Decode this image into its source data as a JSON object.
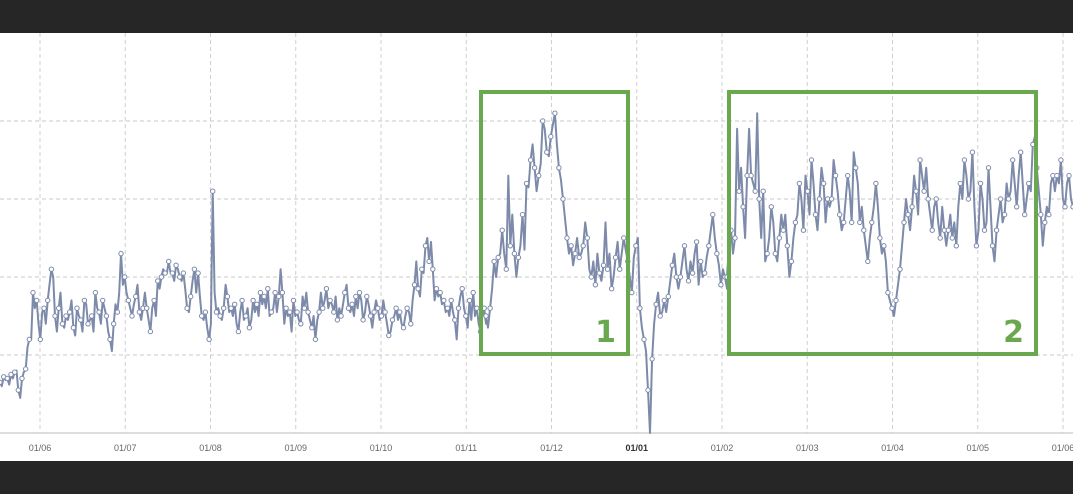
{
  "chart_data": {
    "type": "line",
    "title": "",
    "xlabel": "",
    "ylabel": "",
    "x_tick_labels": [
      "01/06",
      "01/07",
      "01/08",
      "01/09",
      "01/10",
      "01/11",
      "01/12",
      "01/01",
      "01/02",
      "01/03",
      "01/04",
      "01/05",
      "01/06"
    ],
    "bold_tick_index": 7,
    "ylim": [
      0,
      5
    ],
    "y_gridlines": [
      1,
      2,
      3,
      4
    ],
    "grid": true,
    "legend": "none",
    "line_color": "#7d8aaa",
    "marker": "hollow-circle",
    "series": [
      {
        "values": [
          0.65,
          0.6,
          0.72,
          0.68,
          0.7,
          0.62,
          0.75,
          0.7,
          0.78,
          0.8,
          0.55,
          0.45,
          0.7,
          0.78,
          0.82,
          1.1,
          1.2,
          1.2,
          1.8,
          1.6,
          1.7,
          1.4,
          1.2,
          1.55,
          1.6,
          1.4,
          1.7,
          1.9,
          2.1,
          2.0,
          1.5,
          1.3,
          1.6,
          1.8,
          1.4,
          1.35,
          1.5,
          1.45,
          1.55,
          1.7,
          1.35,
          1.25,
          1.6,
          1.5,
          1.45,
          1.3,
          1.7,
          1.65,
          1.4,
          1.45,
          1.5,
          1.3,
          1.8,
          1.6,
          1.55,
          1.4,
          1.7,
          1.6,
          1.5,
          1.3,
          1.2,
          1.05,
          1.4,
          1.65,
          1.55,
          1.8,
          2.3,
          1.9,
          2.0,
          1.8,
          1.7,
          1.6,
          1.5,
          1.65,
          1.75,
          1.9,
          1.55,
          1.45,
          1.6,
          1.8,
          1.6,
          1.45,
          1.3,
          1.6,
          1.7,
          1.5,
          1.95,
          1.85,
          2.0,
          2.1,
          2.05,
          2.05,
          2.2,
          2.05,
          2.05,
          1.95,
          2.15,
          2.1,
          2.0,
          1.95,
          2.05,
          1.85,
          1.6,
          1.55,
          1.75,
          1.95,
          2.1,
          1.8,
          2.05,
          1.75,
          1.5,
          1.45,
          1.55,
          1.35,
          1.2,
          1.4,
          3.1,
          1.8,
          1.55,
          1.6,
          1.5,
          1.45,
          1.6,
          1.9,
          1.75,
          1.55,
          1.6,
          1.5,
          1.65,
          1.4,
          1.3,
          1.55,
          1.7,
          1.45,
          1.5,
          1.6,
          1.35,
          1.45,
          1.7,
          1.55,
          1.65,
          1.5,
          1.8,
          1.65,
          1.75,
          1.6,
          1.85,
          1.5,
          1.55,
          1.6,
          1.8,
          1.55,
          1.75,
          2.1,
          1.8,
          1.4,
          1.6,
          1.5,
          1.55,
          1.3,
          1.7,
          1.5,
          1.55,
          1.45,
          1.4,
          1.75,
          1.6,
          1.8,
          1.55,
          1.45,
          1.35,
          1.5,
          1.2,
          1.45,
          1.55,
          1.8,
          1.6,
          1.7,
          1.85,
          1.6,
          1.7,
          1.65,
          1.55,
          1.75,
          1.45,
          1.6,
          1.5,
          1.65,
          1.8,
          1.9,
          1.6,
          1.55,
          1.65,
          1.5,
          1.75,
          1.6,
          1.8,
          1.7,
          1.45,
          1.55,
          1.75,
          1.65,
          1.5,
          1.35,
          1.55,
          1.7,
          1.6,
          1.45,
          1.5,
          1.7,
          1.55,
          1.4,
          1.25,
          1.3,
          1.45,
          1.5,
          1.6,
          1.45,
          1.55,
          1.4,
          1.35,
          1.5,
          1.6,
          1.55,
          1.4,
          1.7,
          1.9,
          2.2,
          1.85,
          1.75,
          2.1,
          2.05,
          2.4,
          2.5,
          2.2,
          2.45,
          2.1,
          1.7,
          1.85,
          1.75,
          1.8,
          1.65,
          1.7,
          1.55,
          1.6,
          1.5,
          1.7,
          1.55,
          1.45,
          1.2,
          1.6,
          1.75,
          1.85,
          1.6,
          1.5,
          1.35,
          1.7,
          1.45,
          1.8,
          1.5,
          1.6,
          1.4,
          1.3,
          1.5,
          1.6,
          1.4
        ]
      },
      {
        "name": "",
        "values": [
          1.5,
          1.35,
          1.6,
          1.85,
          2.2,
          2.0,
          2.25,
          2.3,
          2.6,
          2.3,
          2.1,
          3.3,
          2.4,
          2.8,
          2.3,
          2.0,
          2.25,
          2.4,
          2.8,
          2.35,
          3.2,
          3.15,
          3.5,
          3.7,
          3.4,
          3.1,
          3.3,
          3.45,
          4.0,
          3.9,
          3.6,
          3.55,
          3.8,
          3.95,
          4.1,
          3.7,
          3.4,
          3.25,
          3.0,
          2.75,
          2.5,
          2.3,
          2.4,
          2.15,
          2.3,
          2.5,
          2.25,
          2.3,
          2.4,
          2.7,
          2.5,
          2.1,
          2.0,
          2.2,
          1.9,
          2.3,
          2.05,
          1.95,
          2.15,
          2.7,
          2.1,
          2.3,
          1.85,
          2.0,
          2.25,
          2.45,
          2.1,
          2.3,
          2.5,
          2.35,
          2.2,
          2.0,
          1.8,
          2.25,
          2.4,
          2.5,
          1.6,
          1.35,
          1.2,
          1.05,
          0.55,
          0.0,
          0.95,
          1.4,
          1.65,
          1.8,
          1.5,
          1.55,
          1.7,
          1.55,
          1.75,
          1.95,
          2.15,
          2.3,
          2.0,
          1.85,
          2.0,
          2.2,
          2.4,
          2.1,
          1.95,
          2.2,
          2.05,
          2.3,
          2.45,
          1.9,
          2.2,
          2.0,
          2.05,
          2.25,
          2.4,
          2.6,
          2.8,
          2.5,
          2.3,
          2.15,
          1.9,
          2.1,
          2.0,
          1.85
        ]
      },
      {
        "values": [
          2.0,
          2.4,
          2.6,
          2.3,
          2.5,
          3.9,
          3.1,
          3.4,
          2.9,
          2.5,
          3.3,
          3.9,
          3.3,
          3.2,
          3.1,
          4.1,
          3.0,
          2.5,
          3.1,
          2.2,
          2.3,
          2.5,
          2.9,
          2.7,
          2.3,
          2.2,
          2.5,
          2.8,
          2.6,
          2.8,
          2.4,
          2.0,
          2.2,
          2.5,
          2.7,
          2.8,
          3.2,
          3.0,
          2.6,
          3.3,
          3.1,
          2.8,
          3.5,
          3.2,
          2.8,
          2.6,
          3.0,
          3.4,
          3.2,
          2.7,
          3.0,
          2.9,
          3.0,
          3.5,
          3.3,
          3.1,
          2.8,
          2.6,
          2.7,
          3.0,
          3.3,
          3.1,
          2.7,
          3.6,
          3.4,
          3.2,
          2.7,
          2.9,
          2.6,
          2.4,
          2.2,
          2.5,
          2.7,
          2.9,
          3.2,
          2.9,
          2.5,
          2.3,
          2.4,
          2.2,
          1.8,
          1.7,
          1.6,
          1.5,
          1.7,
          1.9,
          2.1,
          2.4,
          2.7,
          3.0,
          2.8,
          2.6,
          2.9,
          3.3,
          3.1,
          2.8,
          3.5,
          3.3,
          3.1,
          3.4,
          3.0,
          2.8,
          2.6,
          2.9,
          3.0,
          2.7,
          2.5,
          2.9,
          2.6,
          2.4,
          2.6,
          2.8,
          2.5,
          2.7,
          2.4,
          2.9,
          3.2,
          3.0,
          3.5,
          3.3,
          3.0,
          3.1,
          3.6,
          2.9,
          2.4,
          2.6,
          3.2,
          3.0,
          2.6,
          2.7,
          3.4,
          2.9,
          2.4,
          2.2,
          2.6,
          2.8,
          3.0,
          2.7,
          2.8,
          3.2,
          3.0,
          3.1,
          3.5,
          3.2,
          2.9,
          3.3,
          3.6,
          3.2,
          2.8,
          3.0,
          3.2,
          3.1,
          3.7,
          3.8,
          3.4,
          3.1,
          2.8,
          2.4,
          2.7,
          2.9,
          2.8,
          3.2,
          3.3,
          3.1,
          3.3,
          3.2,
          3.5,
          3.0,
          2.9,
          3.2,
          3.3,
          3.0,
          2.9
        ]
      }
    ],
    "annotation_boxes": [
      {
        "label": "1",
        "color": "#6aa84f"
      },
      {
        "label": "2",
        "color": "#6aa84f"
      }
    ]
  }
}
